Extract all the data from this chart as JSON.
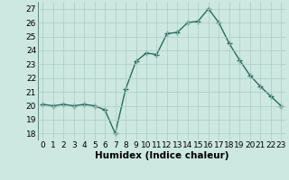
{
  "x": [
    0,
    1,
    2,
    3,
    4,
    5,
    6,
    7,
    8,
    9,
    10,
    11,
    12,
    13,
    14,
    15,
    16,
    17,
    18,
    19,
    20,
    21,
    22,
    23
  ],
  "y": [
    20.1,
    20.0,
    20.1,
    20.0,
    20.1,
    20.0,
    19.7,
    18.0,
    21.2,
    23.2,
    23.8,
    23.7,
    25.2,
    25.3,
    26.0,
    26.1,
    27.0,
    26.0,
    24.5,
    23.3,
    22.2,
    21.4,
    20.7,
    20.0
  ],
  "line_color": "#2d6b5e",
  "marker": "+",
  "marker_size": 4,
  "line_width": 1.0,
  "background_color": "#cce8e0",
  "grid_color": "#aaccc4",
  "xlabel": "Humidex (Indice chaleur)",
  "ylim": [
    17.5,
    27.5
  ],
  "xlim": [
    -0.5,
    23.5
  ],
  "yticks": [
    18,
    19,
    20,
    21,
    22,
    23,
    24,
    25,
    26,
    27
  ],
  "xtick_labels": [
    "0",
    "1",
    "2",
    "3",
    "4",
    "5",
    "6",
    "7",
    "8",
    "9",
    "10",
    "11",
    "12",
    "13",
    "14",
    "15",
    "16",
    "17",
    "18",
    "19",
    "20",
    "21",
    "22",
    "23"
  ],
  "xlabel_fontsize": 7.5,
  "tick_fontsize": 6.5
}
